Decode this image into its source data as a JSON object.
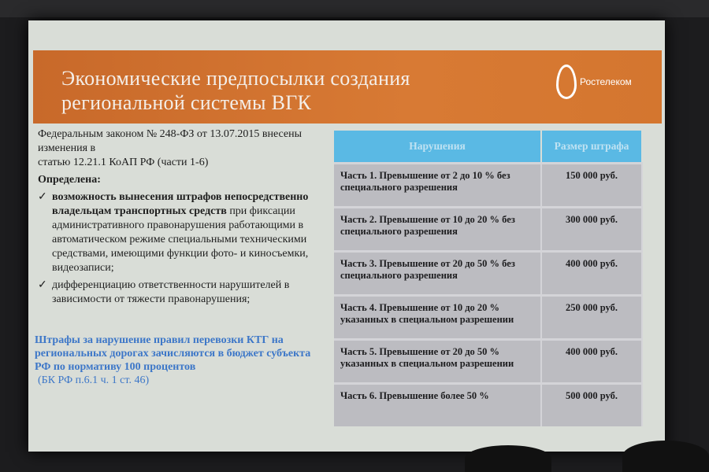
{
  "slide": {
    "title": "Экономические предпосылки создания региональной системы ВГК",
    "logo_text": "Ростелеком",
    "intro_line1": "Федеральным законом № 248-ФЗ от 13.07.2015 внесены изменения в",
    "intro_line2": "статью 12.21.1 КоАП РФ (части 1-6)",
    "defined_heading": "Определена:",
    "bullets": [
      {
        "bold": "возможность вынесения штрафов непосредственно владельцам транспортных средств",
        "rest": " при фиксации административного правонарушения работающими в автоматическом режиме специальными техническими средствами, имеющими функции фото- и киносъемки, видеозаписи;"
      },
      {
        "bold": "",
        "rest": "дифференциацию ответственности нарушителей в зависимости от тяжести правонарушения;"
      }
    ],
    "note": "Штрафы за нарушение правил перевозки КТГ на региональных дорогах зачисляются в бюджет субъекта РФ по нормативу 100 процентов",
    "note_ref": "(БК РФ п.6.1 ч. 1 ст. 46)",
    "table": {
      "headers": [
        "Нарушения",
        "Размер штрафа"
      ],
      "rows": [
        [
          "Часть 1. Превышение от 2 до 10 % без специального разрешения",
          "150 000 руб."
        ],
        [
          "Часть 2. Превышение от 10 до 20 % без специального разрешения",
          "300 000 руб."
        ],
        [
          "Часть 3. Превышение от 20 до 50 % без специального разрешения",
          "400 000 руб."
        ],
        [
          "Часть 4. Превышение от 10 до 20 % указанных в специальном разрешении",
          "250 000 руб."
        ],
        [
          "Часть 5. Превышение от 20 до 50 % указанных в специальном разрешении",
          "400 000 руб."
        ],
        [
          "Часть 6. Превышение более 50 %",
          "500 000 руб."
        ]
      ]
    },
    "colors": {
      "header_band": "#d4762f",
      "table_header": "#5ab9e4",
      "note_text": "#3d77c8",
      "slide_bg": "#d9ddd7"
    }
  }
}
